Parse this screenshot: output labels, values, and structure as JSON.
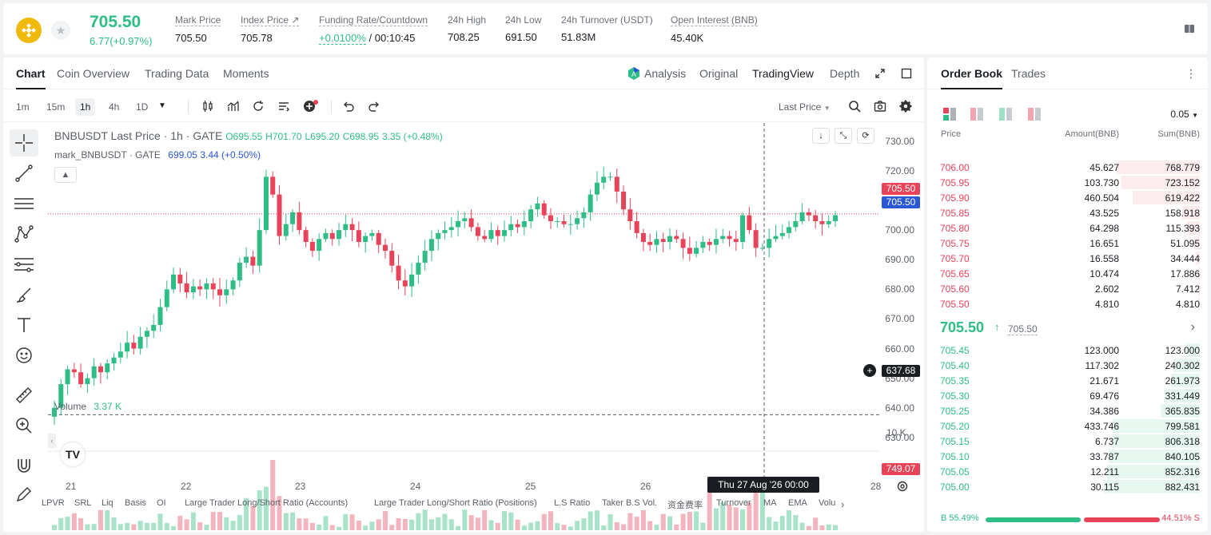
{
  "header": {
    "last_price": "705.50",
    "change": "6.77(+0.97%)",
    "stats": [
      {
        "label": "Mark Price",
        "value": "705.50"
      },
      {
        "label": "Index Price ↗",
        "value": "705.78"
      },
      {
        "label": "Funding Rate/Countdown",
        "value_rate": "+0.0100%",
        "value_countdown": "/ 00:10:45"
      },
      {
        "label": "24h High",
        "value": "708.25"
      },
      {
        "label": "24h Low",
        "value": "691.50"
      },
      {
        "label": "24h Turnover (USDT)",
        "value": "51.83M"
      },
      {
        "label": "Open Interest (BNB)",
        "value": "45.40K"
      }
    ]
  },
  "chart_tabs": [
    "Chart",
    "Coin Overview",
    "Trading Data",
    "Moments"
  ],
  "view_tabs": [
    "Analysis",
    "Original",
    "TradingView",
    "Depth"
  ],
  "timeframes": [
    "1m",
    "15m",
    "1h",
    "4h",
    "1D"
  ],
  "price_source": "Last Price",
  "legend": {
    "symbol": "BNBUSDT Last Price · 1h · GATE",
    "o": "O695.55",
    "h": "H701.70",
    "l": "L695.20",
    "c": "C698.95",
    "chg": "3.35 (+0.48%)",
    "mark_name": "mark_BNBUSDT · GATE",
    "mark_val": "699.05",
    "mark_chg": "3.44 (+0.50%)"
  },
  "volume_legend": {
    "label": "Volume",
    "value": "3.37 K"
  },
  "tags": {
    "last1": "705.50",
    "last2": "705.50",
    "cross": "637.68",
    "vol": "749.07"
  },
  "crosshair_time": "Thu 27 Aug '26   00:00",
  "vol_axis_label": "10 K",
  "indicators": [
    "LPVR",
    "SRL",
    "Liq",
    "Basis",
    "OI",
    "Large Trader Long/Short Ratio (Accounts)",
    "Large Trader Long/Short Ratio (Positions)",
    "L.S Ratio",
    "Taker B.S Vol.",
    "资金费率",
    "Turnover",
    "MA",
    "EMA",
    "Volu"
  ],
  "chart_data": {
    "type": "candlestick",
    "x_ticks": [
      "21",
      "22",
      "23",
      "24",
      "25",
      "26",
      "28"
    ],
    "y_ticks": [
      "730.00",
      "720.00",
      "710.00",
      "700.00",
      "690.00",
      "680.00",
      "670.00",
      "660.00",
      "650.00",
      "640.00",
      "630.00"
    ],
    "ylim": [
      627,
      734
    ],
    "close_series": [
      640,
      648,
      653,
      652,
      648,
      650,
      654,
      652,
      655,
      657,
      659,
      662,
      660,
      664,
      666,
      668,
      674,
      680,
      685,
      682,
      679,
      681,
      680,
      682,
      680,
      678,
      680,
      683,
      689,
      691,
      688,
      700,
      718,
      712,
      698,
      702,
      706,
      700,
      696,
      693,
      697,
      699,
      697,
      700,
      702,
      700,
      696,
      698,
      699,
      695,
      693,
      688,
      683,
      681,
      685,
      689,
      693,
      697,
      699,
      700,
      701,
      703,
      704,
      701,
      698,
      697,
      700,
      698,
      700,
      702,
      701,
      703,
      707,
      709,
      705,
      703,
      703,
      702,
      702,
      704,
      706,
      712,
      716,
      718,
      718,
      713,
      707,
      703,
      699,
      696,
      695,
      697,
      696,
      698,
      697,
      694,
      692,
      694,
      696,
      695,
      697,
      698,
      697,
      696,
      705,
      700,
      694,
      694,
      697,
      698,
      699,
      701,
      703,
      706,
      705,
      703,
      702,
      703,
      705
    ],
    "volume_note": "relative volume bars, peak near day 22"
  },
  "orderbook": {
    "tabs": [
      "Order Book",
      "Trades"
    ],
    "precision": "0.05",
    "headers": [
      "Price",
      "Amount(BNB)",
      "Sum(BNB)"
    ],
    "asks": [
      {
        "p": "706.00",
        "a": "45.627",
        "s": "768.779",
        "f": 0.87
      },
      {
        "p": "705.95",
        "a": "103.730",
        "s": "723.152",
        "f": 0.82
      },
      {
        "p": "705.90",
        "a": "460.504",
        "s": "619.422",
        "f": 0.7
      },
      {
        "p": "705.85",
        "a": "43.525",
        "s": "158.918",
        "f": 0.18
      },
      {
        "p": "705.80",
        "a": "64.298",
        "s": "115.393",
        "f": 0.13
      },
      {
        "p": "705.75",
        "a": "16.651",
        "s": "51.095",
        "f": 0.06
      },
      {
        "p": "705.70",
        "a": "16.558",
        "s": "34.444",
        "f": 0.04
      },
      {
        "p": "705.65",
        "a": "10.474",
        "s": "17.886",
        "f": 0.02
      },
      {
        "p": "705.60",
        "a": "2.602",
        "s": "7.412",
        "f": 0.01
      },
      {
        "p": "705.50",
        "a": "4.810",
        "s": "4.810",
        "f": 0.005
      }
    ],
    "mid": "705.50",
    "mid_mark": "705.50",
    "bids": [
      {
        "p": "705.45",
        "a": "123.000",
        "s": "123.000",
        "f": 0.14
      },
      {
        "p": "705.40",
        "a": "117.302",
        "s": "240.302",
        "f": 0.27
      },
      {
        "p": "705.35",
        "a": "21.671",
        "s": "261.973",
        "f": 0.3
      },
      {
        "p": "705.30",
        "a": "69.476",
        "s": "331.449",
        "f": 0.37
      },
      {
        "p": "705.25",
        "a": "34.386",
        "s": "365.835",
        "f": 0.41
      },
      {
        "p": "705.20",
        "a": "433.746",
        "s": "799.581",
        "f": 0.91
      },
      {
        "p": "705.15",
        "a": "6.737",
        "s": "806.318",
        "f": 0.91
      },
      {
        "p": "705.10",
        "a": "33.787",
        "s": "840.105",
        "f": 0.95
      },
      {
        "p": "705.05",
        "a": "12.211",
        "s": "852.316",
        "f": 0.97
      },
      {
        "p": "705.00",
        "a": "30.115",
        "s": "882.431",
        "f": 1.0
      }
    ],
    "buy_ratio": "B 55.49%",
    "sell_ratio": "44.51% S",
    "buy_fraction": 0.5549
  },
  "colors": {
    "up": "#2ebd85",
    "down": "#e94359",
    "accent": "#f0b90b"
  }
}
